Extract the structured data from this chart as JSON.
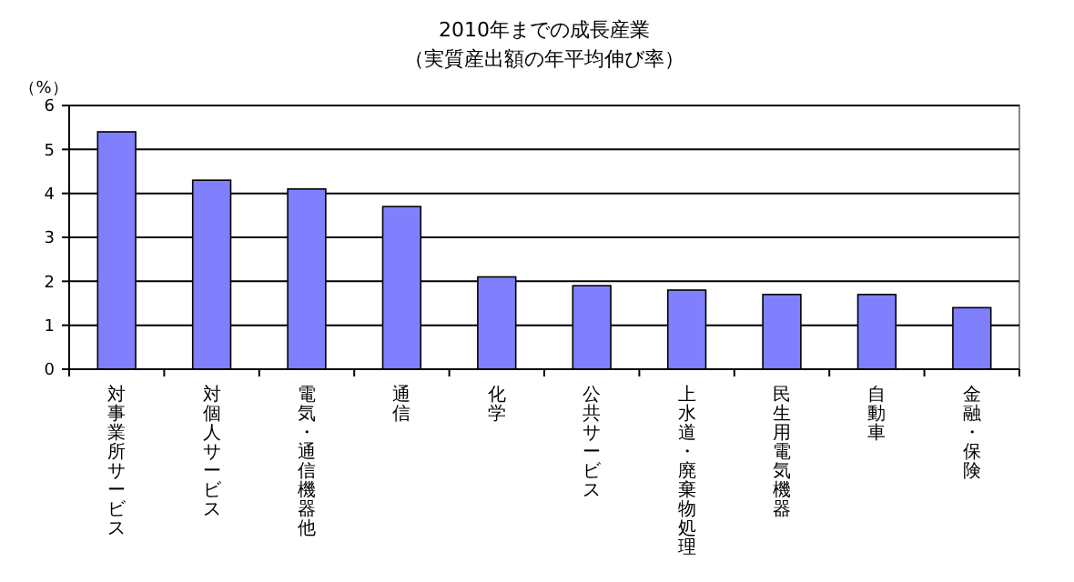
{
  "chart_data": {
    "type": "bar",
    "title": "2010年までの成長産業",
    "subtitle": "（実質産出額の年平均伸び率）",
    "ylabel": "（%）",
    "categories": [
      "対事業所サービス",
      "対個人サービス",
      "電気・通信機器他",
      "通信",
      "化学",
      "公共サービス",
      "上水道・廃棄物処理",
      "民生用電気機器",
      "自動車",
      "金融・保険"
    ],
    "values": [
      5.4,
      4.3,
      4.1,
      3.7,
      2.1,
      1.9,
      1.8,
      1.7,
      1.7,
      1.4
    ],
    "color": "#8080ff",
    "ylim": [
      0,
      6
    ],
    "yticks": [
      0,
      1,
      2,
      3,
      4,
      5,
      6
    ],
    "grid": "y"
  }
}
